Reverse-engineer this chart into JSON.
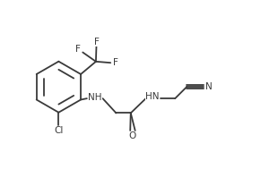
{
  "bg_color": "#ffffff",
  "line_color": "#3a3a3a",
  "text_color": "#3a3a3a",
  "line_width": 1.3,
  "font_size": 7.5,
  "fig_w": 2.91,
  "fig_h": 1.89,
  "dpi": 100,
  "xlim": [
    0,
    10.5
  ],
  "ylim": [
    0,
    6.8
  ]
}
